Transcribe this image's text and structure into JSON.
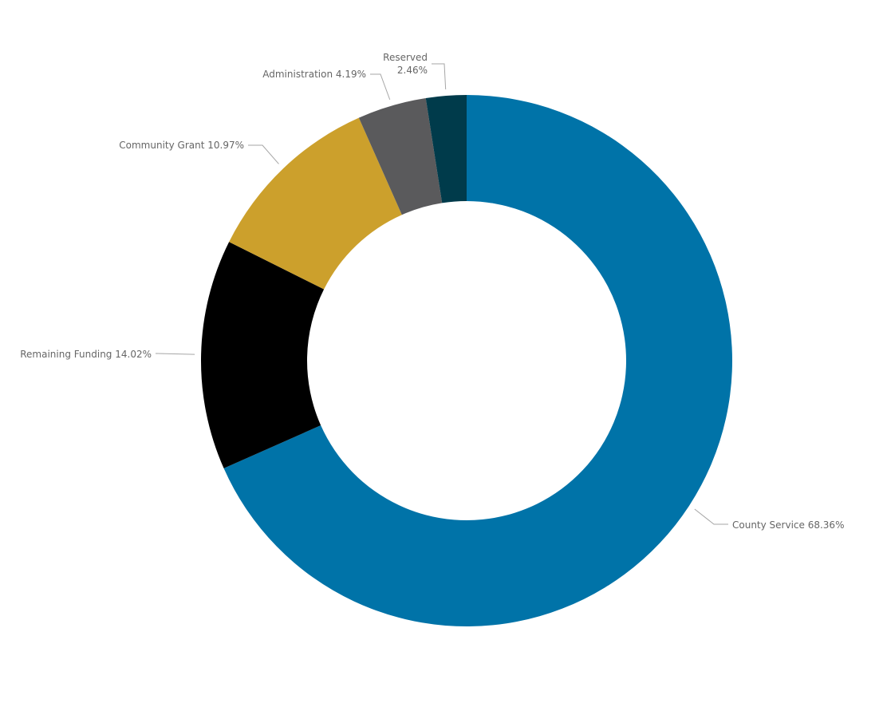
{
  "chart_data": {
    "type": "pie",
    "variant": "donut",
    "title": "",
    "slices": [
      {
        "label": "County Service",
        "value": 68.36,
        "display": "68.36%",
        "color": "#0073a8"
      },
      {
        "label": "Remaining Funding",
        "value": 14.02,
        "display": "14.02%",
        "color": "#000000"
      },
      {
        "label": "Community Grant",
        "value": 10.97,
        "display": "10.97%",
        "color": "#cca02c"
      },
      {
        "label": "Administration",
        "value": 4.19,
        "display": "4.19%",
        "color": "#5a5a5c"
      },
      {
        "label": "Reserved",
        "value": 2.46,
        "display": "2.46%",
        "color": "#003b4b"
      }
    ],
    "start": "12 o'clock",
    "direction": "clockwise",
    "legend": "none",
    "data_labels": "outside with leader lines"
  }
}
